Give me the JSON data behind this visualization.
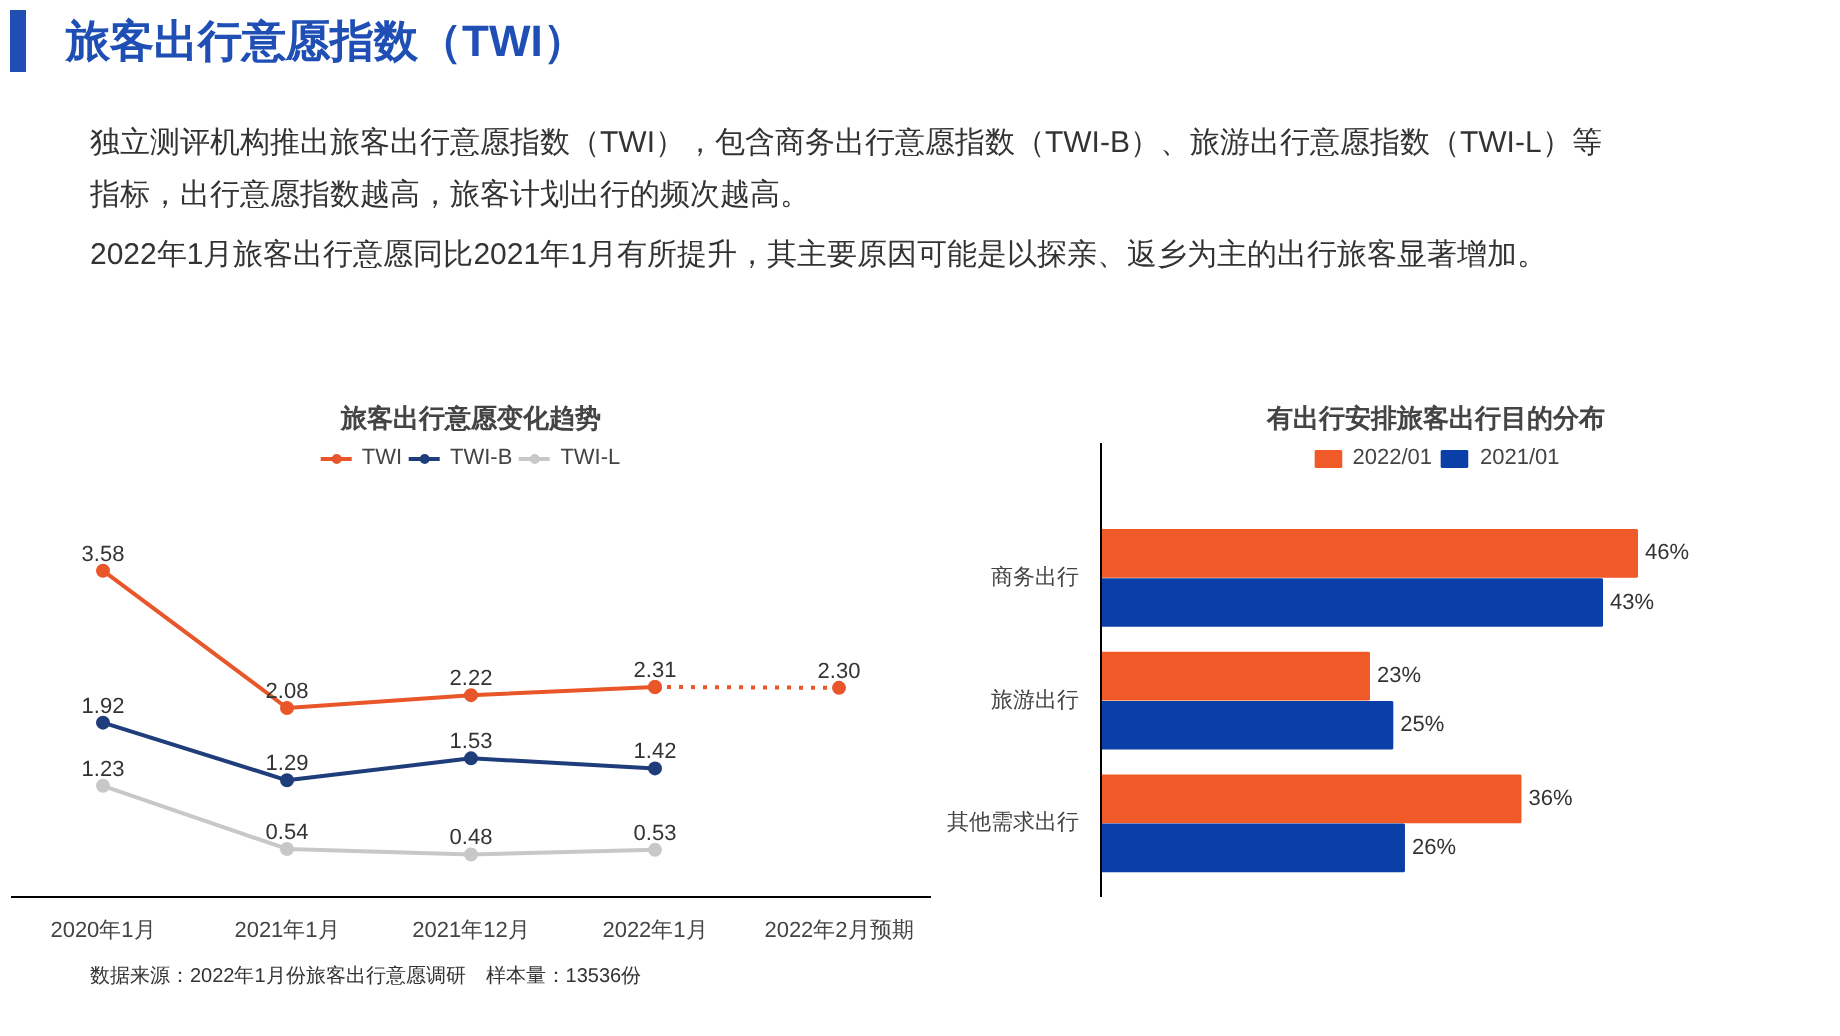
{
  "chart_data": [
    {
      "type": "line",
      "title": "旅客出行意愿变化趋势",
      "annotations": [
        "旅客出行意愿指数（TWI）",
        "独立测评机构推出旅客出行意愿指数（TWI），包含商务出行意愿指数（TWI-B）、旅游出行意愿指数（TWI-L）等指标，出行意愿指数越高，旅客计划出行的频次越高。",
        "2022年1月旅客出行意愿同比2021年1月有所提升，其主要原因可能是以探亲、返乡为主的出行旅客显著增加。",
        "数据来源：2022年1月份旅客出行意愿调研　样本量：13536份"
      ],
      "categories": [
        "2020年1月",
        "2021年1月",
        "2021年12月",
        "2022年1月",
        "2022年2月预期"
      ],
      "series": [
        {
          "name": "TWI",
          "color": "#e8562a",
          "values": [
            3.58,
            2.08,
            2.22,
            2.31,
            null
          ]
        },
        {
          "color": "#e8562a",
          "values": [
            null,
            null,
            null,
            2.31,
            2.3
          ],
          "line_style": "dotted",
          "value_labels": [
            null,
            null,
            null,
            null,
            "2.30"
          ]
        },
        {
          "name": "TWI-B",
          "color": "#1f3d7a",
          "values": [
            1.92,
            1.29,
            1.53,
            1.42,
            null
          ]
        },
        {
          "name": "TWI-L",
          "color": "#c8c8c8",
          "values": [
            1.23,
            0.54,
            0.48,
            0.53,
            null
          ]
        }
      ],
      "data_labels": true,
      "marker": "circle",
      "legend": "top",
      "grid": false,
      "tick_labels": "x"
    },
    {
      "type": "bar",
      "title": "有出行安排旅客出行目的分布",
      "orientation": "horizontal",
      "categories": [
        "商务出行",
        "旅游出行",
        "其他需求出行"
      ],
      "series": [
        {
          "name": "2022/01",
          "color": "#f05a28",
          "values": [
            46,
            23,
            36
          ],
          "value_labels": [
            "46%",
            "23%",
            "36%"
          ]
        },
        {
          "name": "2021/01",
          "color": "#0b3fa8",
          "values": [
            43,
            25,
            26
          ],
          "value_labels": [
            "43%",
            "25%",
            "26%"
          ]
        }
      ],
      "legend": "top",
      "grid": false,
      "tick_labels": "y"
    }
  ]
}
